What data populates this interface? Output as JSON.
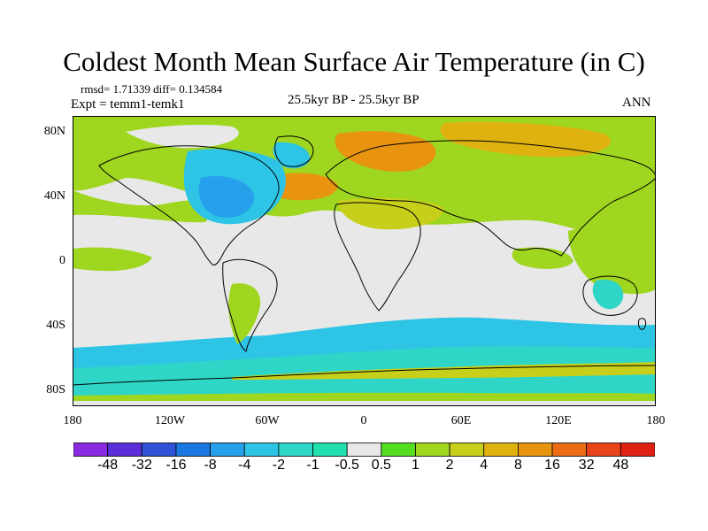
{
  "title": "Coldest Month Mean Surface Air Temperature (in C)",
  "stats_line": "rmsd= 1.71339 diff= 0.134584",
  "expt_line": "Expt = temm1-temk1",
  "period": "25.5kyr BP - 25.5kyr BP",
  "season": "ANN",
  "y_axis_labels": [
    "80N",
    "40N",
    "0",
    "40S",
    "80S"
  ],
  "x_axis_labels": [
    "180",
    "120W",
    "60W",
    "0",
    "60E",
    "120E",
    "180"
  ],
  "colorbar": {
    "labels": [
      "-48",
      "-32",
      "-16",
      "-8",
      "-4",
      "-2",
      "-1",
      "-0.5",
      "0.5",
      "1",
      "2",
      "4",
      "8",
      "16",
      "32",
      "48"
    ],
    "colors": [
      "#8a2be2",
      "#5a2ed8",
      "#2f52d6",
      "#1b78e0",
      "#26a0ea",
      "#2ec4e6",
      "#2fd6c8",
      "#21e0b0",
      "#e8e8e8",
      "#55dd22",
      "#9fd61f",
      "#c8cf1a",
      "#e0b210",
      "#e89410",
      "#ea6c14",
      "#e8431a",
      "#e02010"
    ]
  },
  "palette": {
    "neutral": "#e8e8e8",
    "green": "#9fd61f",
    "lime": "#c8cf1a",
    "yellow": "#e0b210",
    "orange": "#e89410",
    "aqua": "#2fd6c8",
    "cyan": "#2ec4e6",
    "blue": "#26a0ea",
    "darkblue": "#1b78e0"
  }
}
